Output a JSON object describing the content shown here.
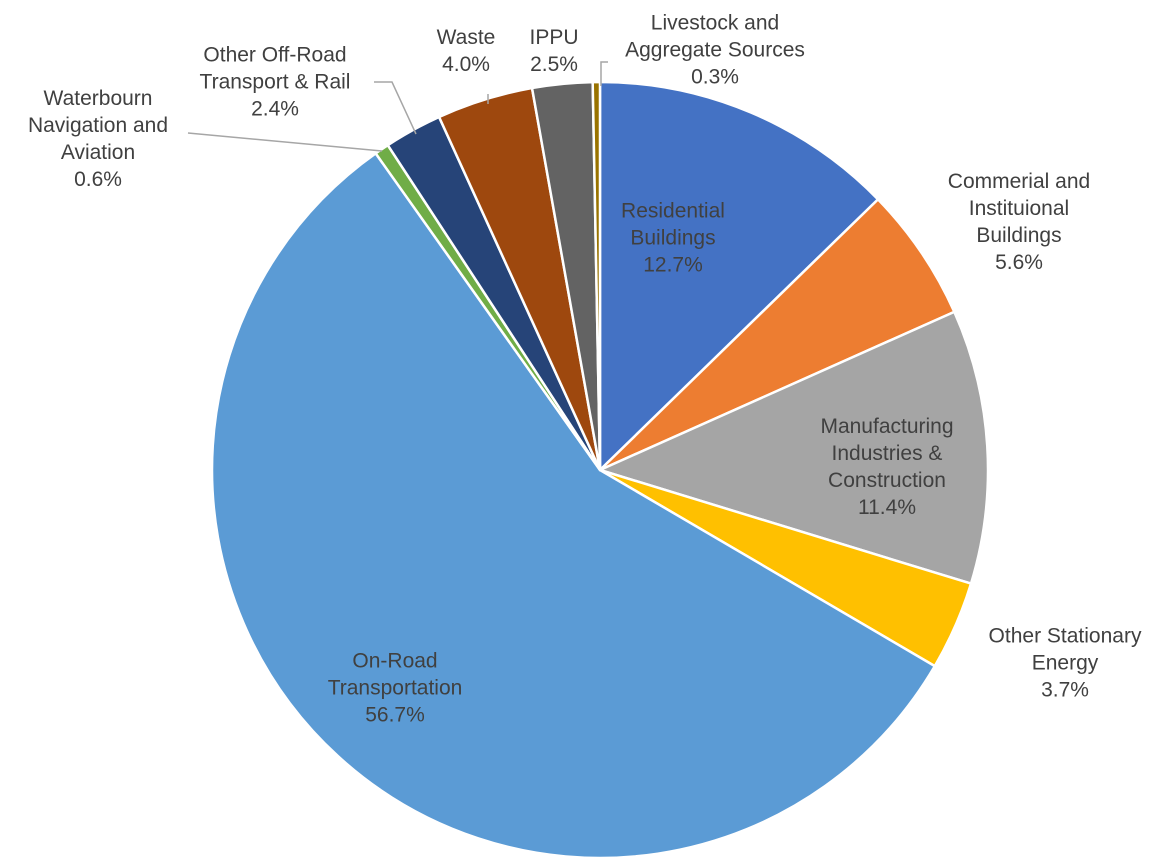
{
  "chart_data": {
    "type": "pie",
    "categories": [
      "Residential Buildings",
      "Commerial and Instituional Buildings",
      "Manufacturing Industries & Construction",
      "Other Stationary Energy",
      "On-Road Transportation",
      "Waterbourn Navigation and Aviation",
      "Other Off-Road Transport & Rail",
      "Waste",
      "IPPU",
      "Livestock and Aggregate Sources"
    ],
    "values": [
      12.7,
      5.6,
      11.4,
      3.7,
      56.7,
      0.6,
      2.4,
      4.0,
      2.5,
      0.3
    ],
    "value_labels": [
      "12.7%",
      "5.6%",
      "11.4%",
      "3.7%",
      "56.7%",
      "0.6%",
      "2.4%",
      "4.0%",
      "2.5%",
      "0.3%"
    ],
    "colors": [
      "#4472c4",
      "#ed7d31",
      "#a5a5a5",
      "#ffc000",
      "#5b9bd5",
      "#70ad47",
      "#264478",
      "#9e480e",
      "#636363",
      "#997300"
    ]
  }
}
